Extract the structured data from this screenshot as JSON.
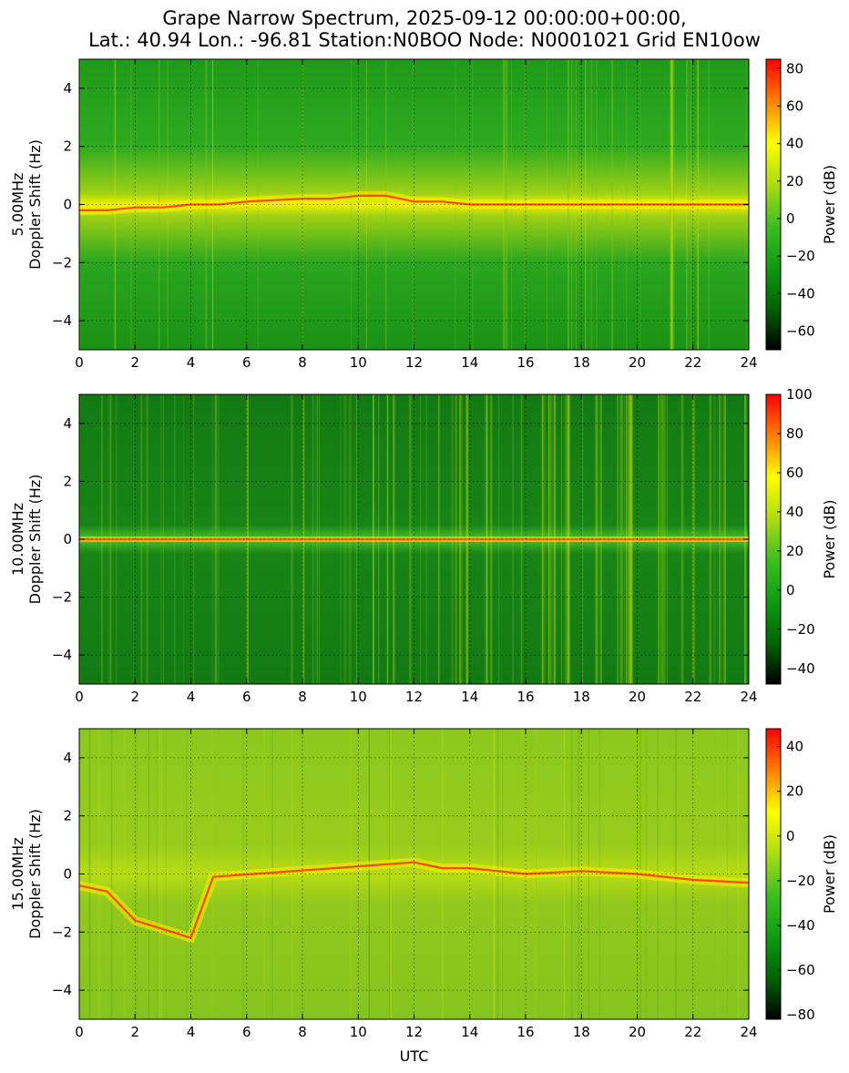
{
  "title": {
    "line1": "Grape Narrow Spectrum, 2025-09-12 00:00:00+00:00,",
    "line2": "Lat.: 40.94 Lon.: -96.81 Station:N0BOO Node: N0001021 Grid EN10ow"
  },
  "colors": {
    "colormap": [
      "#000000",
      "#006400",
      "#129a12",
      "#3fbe22",
      "#aedc12",
      "#ffff00",
      "#ff7f00",
      "#ff0000"
    ],
    "gridline": "#000000"
  },
  "chart_data": [
    {
      "type": "heatmap",
      "id": "p5",
      "frequency_label": "5.00MHz",
      "ylabel": "Doppler Shift (Hz)",
      "xlabel": "",
      "x_range": [
        0,
        24
      ],
      "y_range": [
        -5,
        5
      ],
      "x_ticks": [
        "0",
        "2",
        "4",
        "6",
        "8",
        "10",
        "12",
        "14",
        "16",
        "18",
        "20",
        "22",
        "24"
      ],
      "y_ticks": [
        "4",
        "2",
        "0",
        "−2",
        "−4"
      ],
      "y_tick_values": [
        4,
        2,
        0,
        -2,
        -4
      ],
      "grid": true,
      "colorbar": {
        "label": "Power (dB)",
        "range": [
          -70,
          85
        ],
        "ticks": [
          "80",
          "60",
          "40",
          "20",
          "0",
          "−20",
          "−40",
          "−60"
        ],
        "tick_values": [
          80,
          60,
          40,
          20,
          0,
          -20,
          -40,
          -60
        ]
      },
      "features": {
        "carrier_trace": {
          "x": [
            0,
            1,
            2,
            3,
            4,
            5,
            6,
            8,
            9,
            10,
            11,
            12,
            13,
            14,
            15,
            16,
            18,
            20,
            22,
            24
          ],
          "y": [
            -0.2,
            -0.2,
            -0.1,
            -0.1,
            0.0,
            0.0,
            0.1,
            0.2,
            0.2,
            0.3,
            0.3,
            0.1,
            0.1,
            0.0,
            0.0,
            0.0,
            0.0,
            0.0,
            0.0,
            0.0
          ]
        }
      }
    },
    {
      "type": "heatmap",
      "id": "p10",
      "frequency_label": "10.00MHz",
      "ylabel": "Doppler Shift (Hz)",
      "xlabel": "",
      "x_range": [
        0,
        24
      ],
      "y_range": [
        -5,
        5
      ],
      "x_ticks": [
        "0",
        "2",
        "4",
        "6",
        "8",
        "10",
        "12",
        "14",
        "16",
        "18",
        "20",
        "22",
        "24"
      ],
      "y_ticks": [
        "4",
        "2",
        "0",
        "−2",
        "−4"
      ],
      "y_tick_values": [
        4,
        2,
        0,
        -2,
        -4
      ],
      "grid": true,
      "colorbar": {
        "label": "Power (dB)",
        "range": [
          -48,
          100
        ],
        "ticks": [
          "100",
          "80",
          "60",
          "40",
          "20",
          "0",
          "−20",
          "−40"
        ],
        "tick_values": [
          100,
          80,
          60,
          40,
          20,
          0,
          -20,
          -40
        ]
      },
      "features": {
        "carrier_trace": {
          "x": [
            0,
            24
          ],
          "y": [
            0.0,
            0.0
          ]
        }
      }
    },
    {
      "type": "heatmap",
      "id": "p15",
      "frequency_label": "15.00MHz",
      "ylabel": "Doppler Shift (Hz)",
      "xlabel": "UTC",
      "x_range": [
        0,
        24
      ],
      "y_range": [
        -5,
        5
      ],
      "x_ticks": [
        "0",
        "2",
        "4",
        "6",
        "8",
        "10",
        "12",
        "14",
        "16",
        "18",
        "20",
        "22",
        "24"
      ],
      "y_ticks": [
        "4",
        "2",
        "0",
        "−2",
        "−4"
      ],
      "y_tick_values": [
        4,
        2,
        0,
        -2,
        -4
      ],
      "grid": true,
      "colorbar": {
        "label": "Power (dB)",
        "range": [
          -82,
          48
        ],
        "ticks": [
          "40",
          "20",
          "0",
          "−20",
          "−40",
          "−60",
          "−80"
        ],
        "tick_values": [
          40,
          20,
          0,
          -20,
          -40,
          -60,
          -80
        ]
      },
      "features": {
        "carrier_trace": {
          "x": [
            0,
            1,
            2,
            3,
            4,
            4.8,
            12,
            13,
            14,
            15,
            16,
            18,
            20,
            22,
            24
          ],
          "y": [
            -0.4,
            -0.6,
            -1.6,
            -1.9,
            -2.2,
            -0.1,
            0.4,
            0.2,
            0.2,
            0.1,
            0.0,
            0.1,
            0.0,
            -0.2,
            -0.3
          ]
        }
      }
    }
  ]
}
